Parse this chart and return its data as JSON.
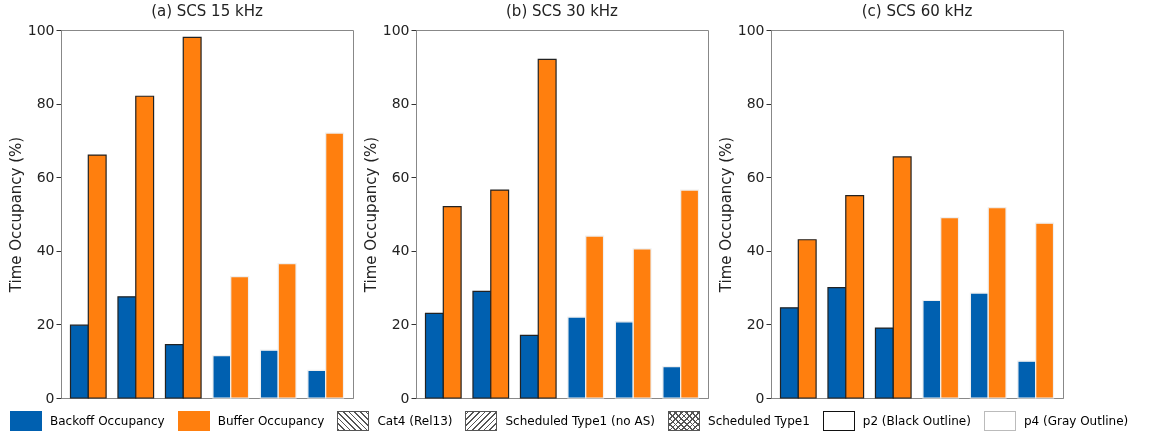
{
  "chart_data": [
    {
      "type": "bar",
      "title": "(a) SCS 15 kHz",
      "ylabel": "Time Occupancy (%)",
      "categories": [
        null,
        null,
        null,
        null,
        null,
        null
      ],
      "ylim": [
        0,
        100
      ],
      "yticks": [
        0,
        20,
        40,
        60,
        80,
        100
      ],
      "legend": "bottom",
      "tick_labels": "y",
      "annotations": [
        "Cat4 (Rel13)",
        "Scheduled Type1 (no AS)",
        "Scheduled Type1",
        "p2 (Black Outline)",
        "p4 (Gray Outline)"
      ],
      "series": [
        {
          "name": "Backoff Occupancy",
          "color": "#0060b0",
          "values": [
            19.8,
            27.5,
            14.5,
            11.5,
            13,
            7.5
          ]
        },
        {
          "name": "Buffer Occupancy",
          "color": "#ff7f0e",
          "values": [
            66,
            82,
            98,
            33,
            36.5,
            72
          ]
        }
      ]
    },
    {
      "type": "bar",
      "title": "(b) SCS 30 kHz",
      "ylabel": "Time Occupancy (%)",
      "categories": [
        null,
        null,
        null,
        null,
        null,
        null
      ],
      "ylim": [
        0,
        100
      ],
      "yticks": [
        0,
        20,
        40,
        60,
        80,
        100
      ],
      "tick_labels": "y",
      "series": [
        {
          "color": "#0060b0",
          "values": [
            23,
            29,
            17,
            22,
            20.7,
            8.5
          ]
        },
        {
          "color": "#ff7f0e",
          "values": [
            52,
            56.5,
            92,
            44,
            40.5,
            56.5
          ]
        }
      ]
    },
    {
      "type": "bar",
      "title": "(c) SCS 60 kHz",
      "ylabel": "Time Occupancy (%)",
      "categories": [
        null,
        null,
        null,
        null,
        null,
        null
      ],
      "ylim": [
        0,
        100
      ],
      "yticks": [
        0,
        20,
        40,
        60,
        80,
        100
      ],
      "tick_labels": "y",
      "series": [
        {
          "color": "#0060b0",
          "values": [
            24.5,
            30,
            19,
            26.5,
            28.5,
            10
          ]
        },
        {
          "color": "#ff7f0e",
          "values": [
            43,
            55,
            65.5,
            49,
            51.7,
            47.5
          ]
        }
      ]
    }
  ]
}
